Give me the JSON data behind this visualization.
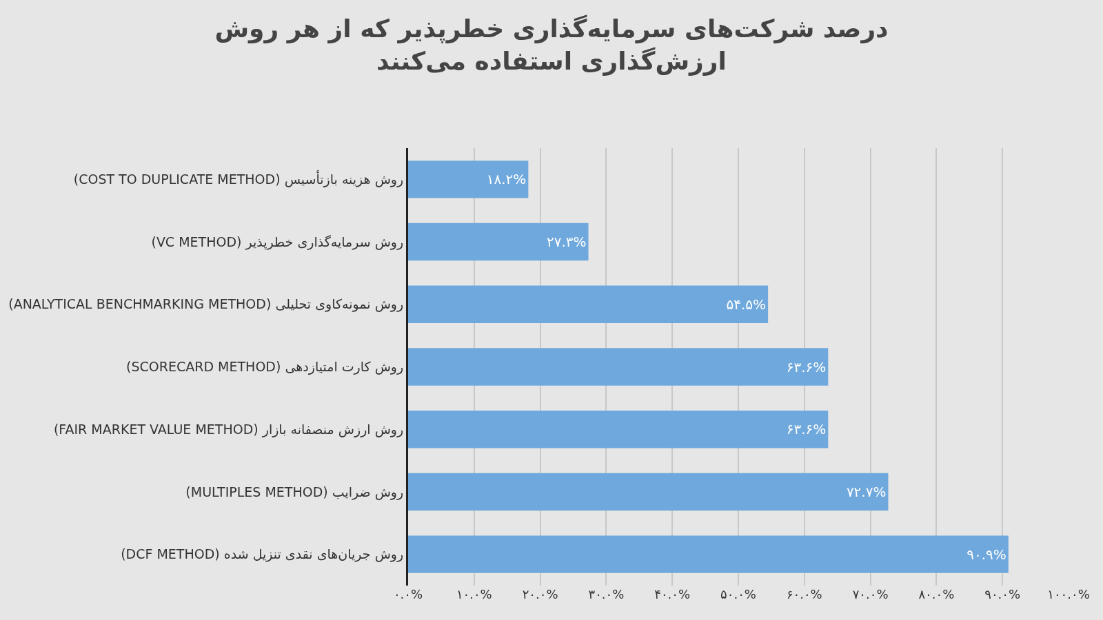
{
  "chart_data": {
    "type": "bar",
    "orientation": "horizontal",
    "title": "درصد شرکت‌های سرمایه‌گذاری خطرپذیر که از هر روش\nارزش‌گذاری استفاده می‌کنند",
    "categories": [
      "روش هزینه بازتأسیس (COST TO DUPLICATE METHOD)",
      "روش سرمایه‌گذاری خطرپذیر (VC METHOD)",
      "روش نمونه‌کاوی تحلیلی (ANALYTICAL BENCHMARKING METHOD)",
      "روش کارت امتیازدهی (SCORECARD METHOD)",
      "روش ارزش منصفانه بازار (FAIR MARKET VALUE METHOD)",
      "روش ضرایب (MULTIPLES METHOD)",
      "روش جریان‌های نقدی تنزیل شده (DCF METHOD)"
    ],
    "values": [
      18.2,
      27.3,
      54.5,
      63.6,
      63.6,
      72.7,
      90.9
    ],
    "value_labels": [
      "۱۸.۲%",
      "۲۷.۳%",
      "۵۴.۵%",
      "۶۳.۶%",
      "۶۳.۶%",
      "۷۲.۷%",
      "۹۰.۹%"
    ],
    "color": "#6fa8dc",
    "xlim": [
      0,
      100
    ],
    "xticks": [
      {
        "value": 0,
        "label": "۰.۰%"
      },
      {
        "value": 10,
        "label": "۱۰.۰%"
      },
      {
        "value": 20,
        "label": "۲۰.۰%"
      },
      {
        "value": 30,
        "label": "۳۰.۰%"
      },
      {
        "value": 40,
        "label": "۴۰.۰%"
      },
      {
        "value": 50,
        "label": "۵۰.۰%"
      },
      {
        "value": 60,
        "label": "۶۰.۰%"
      },
      {
        "value": 70,
        "label": "۷۰.۰%"
      },
      {
        "value": 80,
        "label": "۸۰.۰%"
      },
      {
        "value": 90,
        "label": "۹۰.۰%"
      },
      {
        "value": 100,
        "label": "۱۰۰.۰%"
      }
    ],
    "grid": "x",
    "legend": false
  }
}
